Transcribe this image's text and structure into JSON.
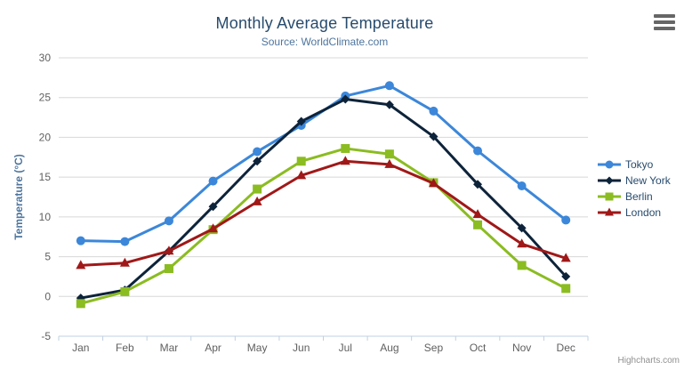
{
  "title": "Monthly Average Temperature",
  "subtitle": "Source: WorldClimate.com",
  "credits": "Highcharts.com",
  "export_menu_icon": "hamburger-icon",
  "colors": {
    "title_text": "#274b6d",
    "subtitle_text": "#4d759e",
    "axis_label_text": "#606060",
    "axis_title_text": "#4d759e",
    "gridline": "#d8d8d8",
    "axis_line": "#c0d0e0",
    "legend_text": "#274b6d",
    "credits_text": "#909090"
  },
  "chart_data": {
    "type": "line",
    "title": "Monthly Average Temperature",
    "subtitle": "Source: WorldClimate.com",
    "categories": [
      "Jan",
      "Feb",
      "Mar",
      "Apr",
      "May",
      "Jun",
      "Jul",
      "Aug",
      "Sep",
      "Oct",
      "Nov",
      "Dec"
    ],
    "series": [
      {
        "name": "Tokyo",
        "color": "#3c87d9",
        "marker": "circle",
        "values": [
          7.0,
          6.9,
          9.5,
          14.5,
          18.2,
          21.5,
          25.2,
          26.5,
          23.3,
          18.3,
          13.9,
          9.6
        ]
      },
      {
        "name": "New York",
        "color": "#0d233a",
        "marker": "diamond",
        "values": [
          -0.2,
          0.8,
          5.7,
          11.3,
          17.0,
          22.0,
          24.8,
          24.1,
          20.1,
          14.1,
          8.6,
          2.5
        ]
      },
      {
        "name": "Berlin",
        "color": "#8bbc21",
        "marker": "square",
        "values": [
          -0.9,
          0.6,
          3.5,
          8.4,
          13.5,
          17.0,
          18.6,
          17.9,
          14.3,
          9.0,
          3.9,
          1.0
        ]
      },
      {
        "name": "London",
        "color": "#a01818",
        "marker": "triangle",
        "values": [
          3.9,
          4.2,
          5.7,
          8.5,
          11.9,
          15.2,
          17.0,
          16.6,
          14.2,
          10.3,
          6.6,
          4.8
        ]
      }
    ],
    "xlabel": "",
    "ylabel": "Temperature (°C)",
    "ylim": [
      -5,
      30
    ],
    "ytick_step": 5,
    "grid": true,
    "legend_position": "right"
  }
}
